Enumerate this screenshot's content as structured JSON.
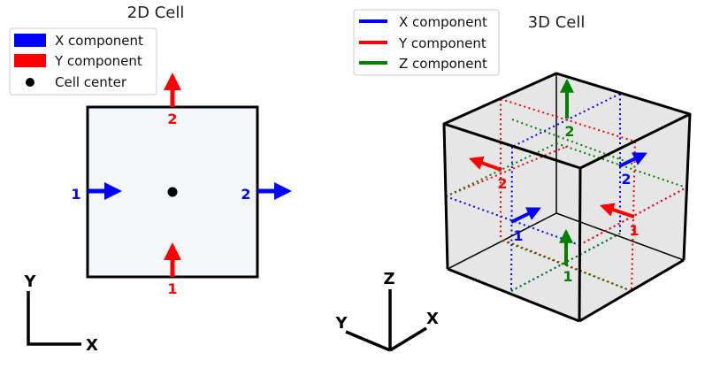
{
  "colors": {
    "x": "#0000ff",
    "y": "#ff0000",
    "z": "#008000",
    "cell2d_fill": "#f3f7fa",
    "cell3d_fill": "#e3e3e3",
    "edge": "#000000"
  },
  "panel_2d": {
    "title": "2D Cell",
    "legend": [
      {
        "label": "X component",
        "marker": "patch-blue"
      },
      {
        "label": "Y component",
        "marker": "patch-red"
      },
      {
        "label": "Cell center",
        "marker": "dot"
      }
    ],
    "labels": {
      "x1": "1",
      "x2": "2",
      "y1": "1",
      "y2": "2"
    },
    "axes": {
      "y": "Y",
      "x": "X"
    }
  },
  "panel_3d": {
    "title": "3D Cell",
    "legend": [
      {
        "label": "X component",
        "marker": "line-blue"
      },
      {
        "label": "Y component",
        "marker": "line-red"
      },
      {
        "label": "Z component",
        "marker": "line-green"
      }
    ],
    "labels": {
      "x1": "1",
      "x2": "2",
      "y1": "1",
      "y2": "2",
      "z1": "1",
      "z2": "2"
    },
    "axes": {
      "z": "Z",
      "y": "Y",
      "x": "X"
    }
  }
}
